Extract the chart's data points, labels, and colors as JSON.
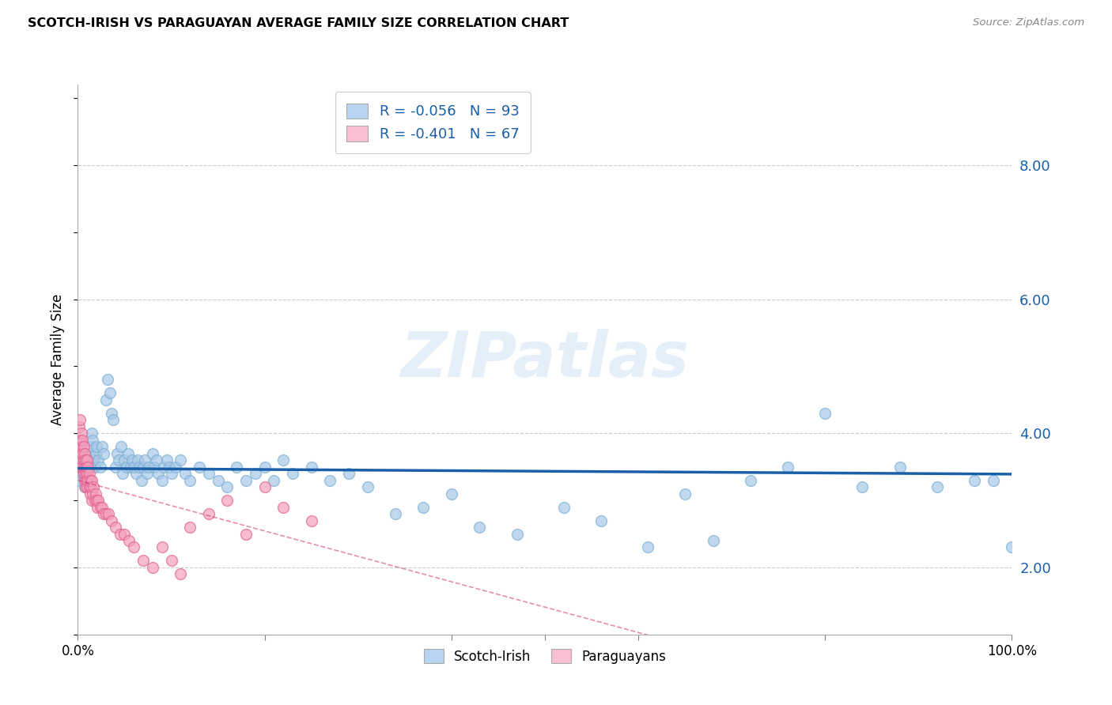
{
  "title": "SCOTCH-IRISH VS PARAGUAYAN AVERAGE FAMILY SIZE CORRELATION CHART",
  "source": "Source: ZipAtlas.com",
  "ylabel": "Average Family Size",
  "yticks_right": [
    2.0,
    4.0,
    6.0,
    8.0
  ],
  "blue_R": -0.056,
  "blue_N": 93,
  "pink_R": -0.401,
  "pink_N": 67,
  "blue_color": "#a8c8e8",
  "blue_edge": "#7aafd4",
  "pink_color": "#f4a0bc",
  "pink_edge": "#e06090",
  "blue_line_color": "#1a5fa8",
  "pink_line_color": "#cc2060",
  "watermark": "ZIPatlas",
  "legend_label_blue": "Scotch-Irish",
  "legend_label_pink": "Paraguayans",
  "blue_legend_fill": "#b8d4f0",
  "pink_legend_fill": "#f8c0d0",
  "blue_scatter_x": [
    0.003,
    0.004,
    0.005,
    0.006,
    0.007,
    0.008,
    0.009,
    0.01,
    0.011,
    0.012,
    0.013,
    0.014,
    0.015,
    0.016,
    0.017,
    0.018,
    0.019,
    0.02,
    0.022,
    0.024,
    0.026,
    0.028,
    0.03,
    0.032,
    0.034,
    0.036,
    0.038,
    0.04,
    0.042,
    0.044,
    0.046,
    0.048,
    0.05,
    0.052,
    0.054,
    0.056,
    0.058,
    0.06,
    0.062,
    0.064,
    0.066,
    0.068,
    0.07,
    0.072,
    0.074,
    0.076,
    0.08,
    0.082,
    0.084,
    0.086,
    0.09,
    0.092,
    0.095,
    0.098,
    0.1,
    0.105,
    0.11,
    0.115,
    0.12,
    0.13,
    0.14,
    0.15,
    0.16,
    0.17,
    0.18,
    0.19,
    0.2,
    0.21,
    0.22,
    0.23,
    0.25,
    0.27,
    0.29,
    0.31,
    0.34,
    0.37,
    0.4,
    0.43,
    0.47,
    0.52,
    0.56,
    0.61,
    0.65,
    0.68,
    0.72,
    0.76,
    0.8,
    0.84,
    0.88,
    0.92,
    0.96,
    0.98,
    1.0
  ],
  "blue_scatter_y": [
    3.3,
    3.5,
    3.4,
    3.6,
    3.2,
    3.5,
    3.3,
    3.4,
    3.6,
    3.5,
    3.7,
    3.8,
    4.0,
    3.9,
    3.6,
    3.5,
    3.7,
    3.8,
    3.6,
    3.5,
    3.8,
    3.7,
    4.5,
    4.8,
    4.6,
    4.3,
    4.2,
    3.5,
    3.7,
    3.6,
    3.8,
    3.4,
    3.6,
    3.5,
    3.7,
    3.5,
    3.6,
    3.5,
    3.4,
    3.6,
    3.5,
    3.3,
    3.5,
    3.6,
    3.4,
    3.5,
    3.7,
    3.5,
    3.6,
    3.4,
    3.3,
    3.5,
    3.6,
    3.5,
    3.4,
    3.5,
    3.6,
    3.4,
    3.3,
    3.5,
    3.4,
    3.3,
    3.2,
    3.5,
    3.3,
    3.4,
    3.5,
    3.3,
    3.6,
    3.4,
    3.5,
    3.3,
    3.4,
    3.2,
    2.8,
    2.9,
    3.1,
    2.6,
    2.5,
    2.9,
    2.7,
    2.3,
    3.1,
    2.4,
    3.3,
    3.5,
    4.3,
    3.2,
    3.5,
    3.2,
    3.3,
    3.3,
    2.3
  ],
  "pink_scatter_x": [
    0.001,
    0.001,
    0.002,
    0.002,
    0.002,
    0.003,
    0.003,
    0.003,
    0.004,
    0.004,
    0.004,
    0.005,
    0.005,
    0.005,
    0.006,
    0.006,
    0.006,
    0.007,
    0.007,
    0.007,
    0.008,
    0.008,
    0.008,
    0.009,
    0.009,
    0.01,
    0.01,
    0.01,
    0.011,
    0.011,
    0.012,
    0.012,
    0.013,
    0.013,
    0.014,
    0.015,
    0.015,
    0.016,
    0.017,
    0.018,
    0.019,
    0.02,
    0.021,
    0.022,
    0.024,
    0.026,
    0.028,
    0.03,
    0.033,
    0.036,
    0.04,
    0.045,
    0.05,
    0.055,
    0.06,
    0.07,
    0.08,
    0.09,
    0.1,
    0.11,
    0.12,
    0.14,
    0.16,
    0.18,
    0.2,
    0.22,
    0.25
  ],
  "pink_scatter_y": [
    3.8,
    4.1,
    3.5,
    3.9,
    4.2,
    3.7,
    3.5,
    3.9,
    3.6,
    3.8,
    4.0,
    3.5,
    3.7,
    3.9,
    3.4,
    3.6,
    3.8,
    3.3,
    3.5,
    3.7,
    3.2,
    3.4,
    3.6,
    3.3,
    3.5,
    3.2,
    3.4,
    3.6,
    3.3,
    3.5,
    3.2,
    3.4,
    3.1,
    3.3,
    3.2,
    3.0,
    3.3,
    3.1,
    3.2,
    3.0,
    3.1,
    3.0,
    2.9,
    3.0,
    2.9,
    2.9,
    2.8,
    2.8,
    2.8,
    2.7,
    2.6,
    2.5,
    2.5,
    2.4,
    2.3,
    2.1,
    2.0,
    2.3,
    2.1,
    1.9,
    2.6,
    2.8,
    3.0,
    2.5,
    3.2,
    2.9,
    2.7
  ]
}
